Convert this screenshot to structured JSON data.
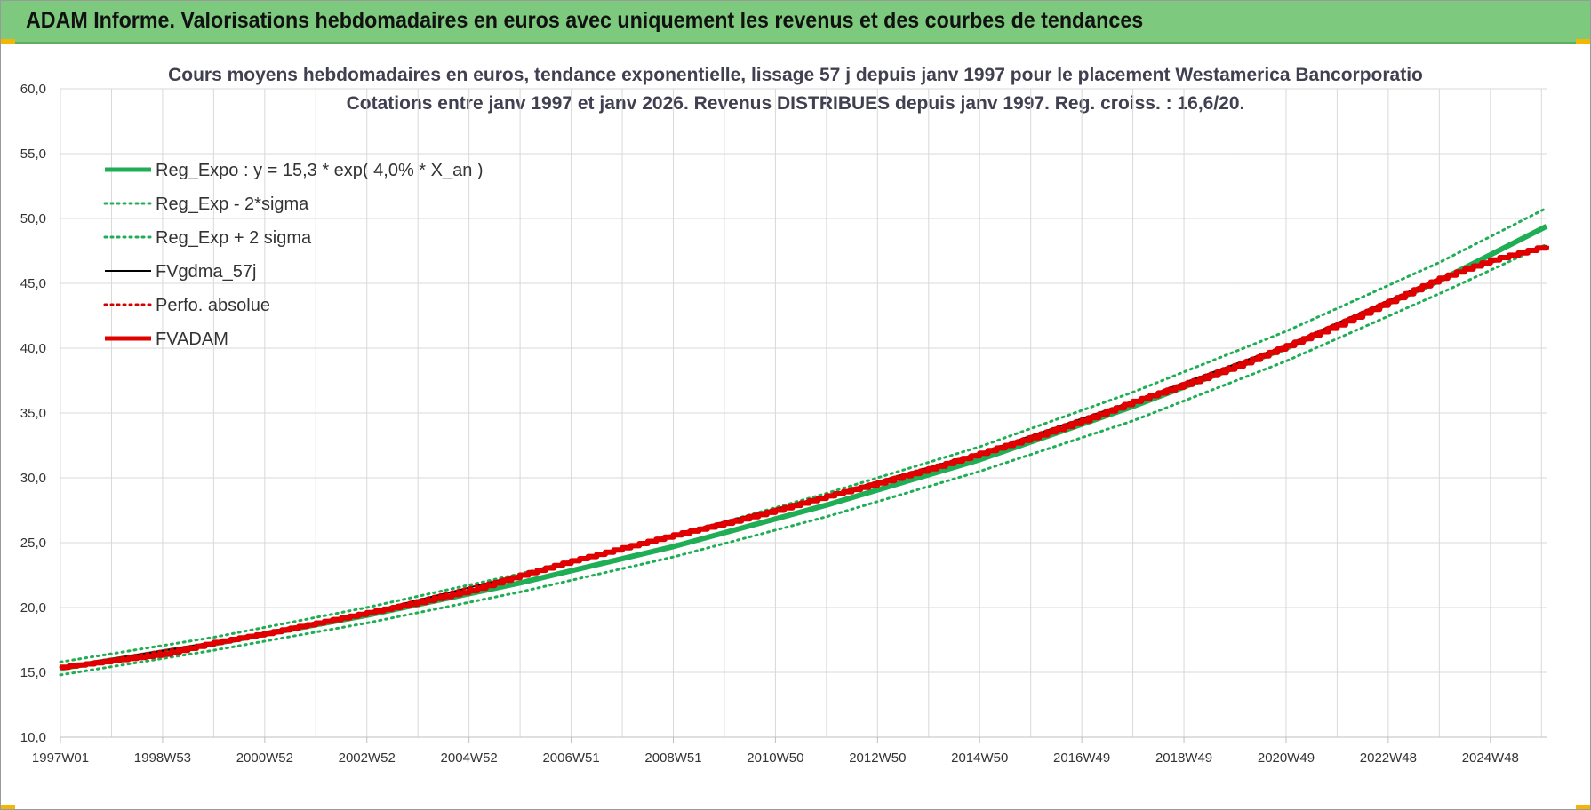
{
  "header": {
    "title": "ADAM Informe. Valorisations hebdomadaires en euros avec uniquement les revenus et des courbes de tendances"
  },
  "colors": {
    "header_bg": "#7dc97d",
    "reg_expo": "#1fae55",
    "sigma": "#1fae55",
    "fvgdma": "#000000",
    "perfo": "#d40000",
    "fvadam": "#e00000"
  },
  "chart_data": {
    "type": "line",
    "title": "Cours moyens hebdomadaires en euros, tendance exponentielle, lissage 57 j depuis janv 1997  pour le placement Westamerica Bancorporatio",
    "subtitle": "Cotations entre janv 1997 et janv 2026. Revenus DISTRIBUES depuis janv 1997. Reg. croiss. : 16,6/20.",
    "xlabel": "",
    "ylabel": "",
    "ylim": [
      10,
      60
    ],
    "y_ticks": [
      "60,0",
      "55,0",
      "50,0",
      "45,0",
      "40,0",
      "35,0",
      "30,0",
      "25,0",
      "20,0",
      "15,0",
      "10,0"
    ],
    "x_ticks": [
      "1997W01",
      "1998W53",
      "2000W52",
      "2002W52",
      "2004W52",
      "2006W51",
      "2008W51",
      "2010W50",
      "2012W50",
      "2014W50",
      "2016W49",
      "2018W49",
      "2020W49",
      "2022W48",
      "2024W48"
    ],
    "x_year_range": [
      1997.0,
      2026.1
    ],
    "grid": true,
    "legend_position": "top-left",
    "series": [
      {
        "name": "Reg_Expo : y = 15,3 * exp( 4,0% *  X_an )",
        "style": "solid-thick",
        "color": "#1fae55",
        "x": [
          1997,
          2000,
          2003,
          2006,
          2009,
          2012,
          2015,
          2018,
          2021,
          2024,
          2026.1
        ],
        "values": [
          15.3,
          17.2,
          19.4,
          21.9,
          24.7,
          27.9,
          31.4,
          35.5,
          40.0,
          45.2,
          49.4
        ]
      },
      {
        "name": "Reg_Exp - 2*sigma",
        "style": "dotted",
        "color": "#1fae55",
        "x": [
          1997,
          2000,
          2003,
          2006,
          2009,
          2012,
          2015,
          2018,
          2021,
          2024,
          2026.1
        ],
        "values": [
          14.8,
          16.7,
          18.8,
          21.2,
          23.9,
          27.0,
          30.5,
          34.4,
          39.0,
          44.2,
          48.0
        ]
      },
      {
        "name": "Reg_Exp + 2 sigma",
        "style": "dotted",
        "color": "#1fae55",
        "x": [
          1997,
          2000,
          2003,
          2006,
          2009,
          2012,
          2015,
          2018,
          2021,
          2024,
          2026.1
        ],
        "values": [
          15.8,
          17.7,
          20.0,
          22.6,
          25.5,
          28.8,
          32.4,
          36.6,
          41.3,
          46.6,
          50.8
        ]
      },
      {
        "name": "FVgdma_57j",
        "style": "solid",
        "color": "#000000",
        "x": [
          1997,
          2000,
          2003,
          2006,
          2009,
          2012,
          2015,
          2018,
          2021,
          2024,
          2026.1
        ],
        "values": [
          15.4,
          17.3,
          19.6,
          22.5,
          25.6,
          28.6,
          31.9,
          35.9,
          40.2,
          45.4,
          47.9
        ]
      },
      {
        "name": "Perfo. absolue",
        "style": "dotted",
        "color": "#d40000",
        "x": [
          1997,
          2000,
          2003,
          2006,
          2009,
          2012,
          2015,
          2018,
          2021,
          2024,
          2026.1
        ],
        "values": [
          15.4,
          17.3,
          19.6,
          22.5,
          25.6,
          28.6,
          31.9,
          35.9,
          40.2,
          45.4,
          47.9
        ]
      },
      {
        "name": "FVADAM",
        "style": "solid-thick",
        "color": "#e00000",
        "x": [
          1997,
          1998,
          1999,
          2000,
          2001,
          2002,
          2003,
          2004,
          2005,
          2006,
          2007,
          2008,
          2009,
          2010,
          2011,
          2012,
          2013,
          2014,
          2015,
          2016,
          2017,
          2018,
          2019,
          2020,
          2021,
          2022,
          2023,
          2024,
          2025,
          2026.1
        ],
        "values": [
          15.4,
          15.9,
          16.4,
          17.3,
          18.0,
          18.8,
          19.6,
          20.4,
          21.3,
          22.5,
          23.6,
          24.6,
          25.6,
          26.5,
          27.5,
          28.6,
          29.6,
          30.7,
          31.9,
          33.1,
          34.4,
          35.9,
          37.2,
          38.6,
          40.2,
          41.8,
          43.6,
          45.4,
          46.8,
          47.9
        ]
      }
    ]
  }
}
